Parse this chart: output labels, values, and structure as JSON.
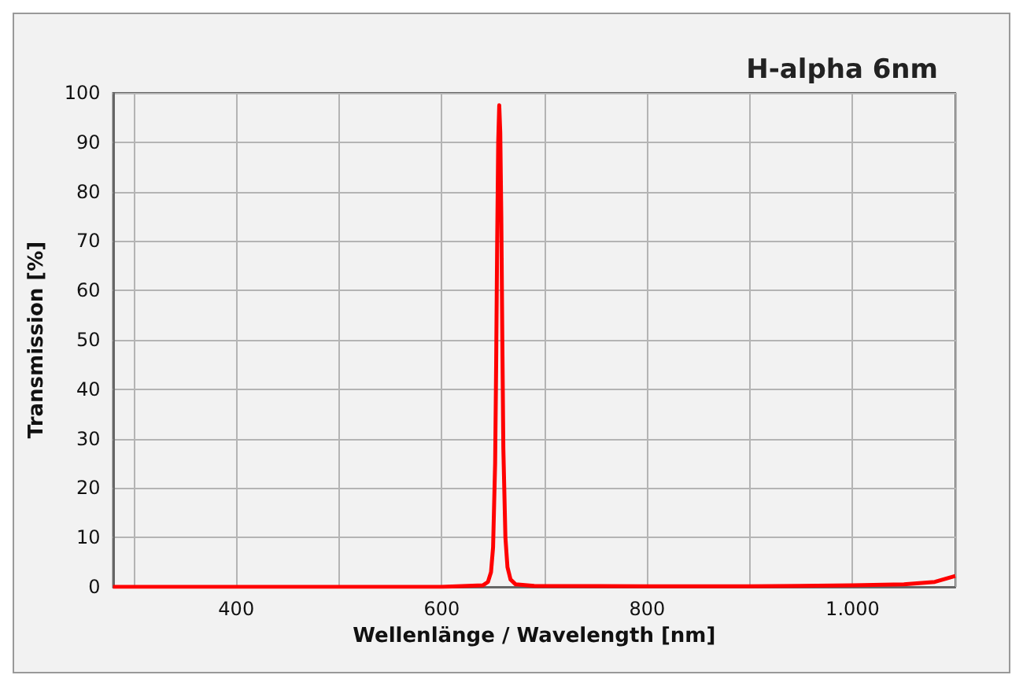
{
  "chart_data": {
    "type": "line",
    "title": "H-alpha 6nm",
    "xlabel": "Wellenlänge / Wavelength [nm]",
    "ylabel": "Transmission [%]",
    "xlim": [
      280,
      1100
    ],
    "ylim": [
      0,
      100
    ],
    "xticks": [
      {
        "value": 300,
        "label": null
      },
      400,
      {
        "value": 500,
        "label": null
      },
      600,
      {
        "value": 700,
        "label": null
      },
      800,
      {
        "value": 900,
        "label": null
      },
      {
        "value": 1000,
        "label": "1.000"
      },
      {
        "value": 1100,
        "label": null
      }
    ],
    "yticks": [
      0,
      10,
      20,
      30,
      40,
      50,
      60,
      70,
      80,
      90,
      100
    ],
    "grid": true,
    "marker": "none",
    "line_style": "solid",
    "series": [
      {
        "color": "#ff0000",
        "x": [
          280,
          400,
          600,
          640,
          645,
          648,
          650,
          652,
          653,
          654,
          655,
          656,
          657,
          658,
          659,
          660,
          662,
          664,
          667,
          672,
          690,
          800,
          900,
          1000,
          1050,
          1080,
          1100
        ],
        "values": [
          0,
          0,
          0,
          0.3,
          1,
          3,
          8,
          25,
          45,
          70,
          90,
          97.5,
          92,
          75,
          50,
          28,
          10,
          4,
          1.5,
          0.5,
          0.2,
          0.1,
          0.1,
          0.3,
          0.5,
          1,
          2.2
        ]
      }
    ]
  }
}
